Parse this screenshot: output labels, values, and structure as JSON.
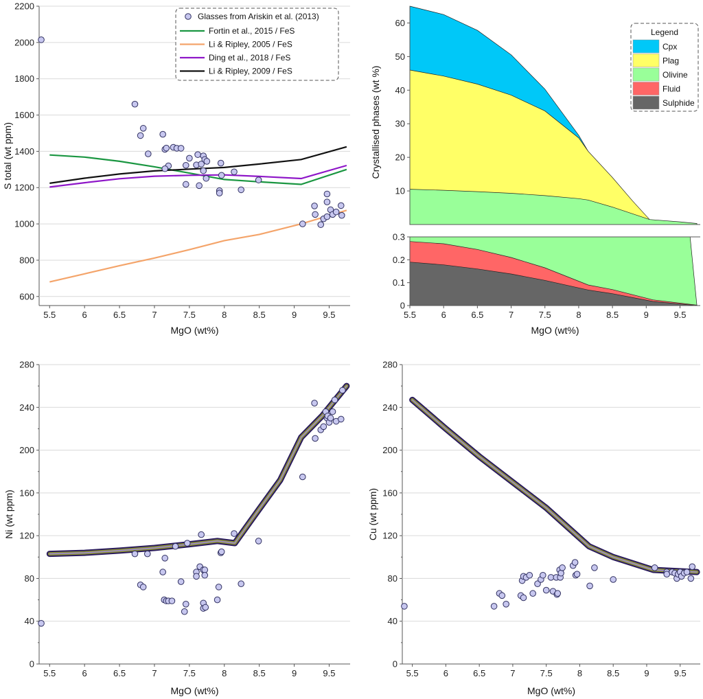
{
  "chart_data": [
    {
      "id": "sulfur",
      "type": "line",
      "xlabel": "MgO (wt%)",
      "ylabel": "S total (wt ppm)",
      "xlim": [
        5.35,
        9.8
      ],
      "ylim": [
        550,
        2200
      ],
      "xticks": [
        5.5,
        6,
        6.5,
        7,
        7.5,
        8,
        8.5,
        9,
        9.5
      ],
      "yticks": [
        600,
        800,
        1000,
        1200,
        1400,
        1600,
        1800,
        2000,
        2200
      ],
      "grid": "horizontal",
      "legend_position": "top-right",
      "series": [
        {
          "name": "Fortin et al., 2015 / FeS",
          "color": "#1a9641",
          "x": [
            5.5,
            6.0,
            6.5,
            7.0,
            7.5,
            8.0,
            8.5,
            9.1,
            9.75
          ],
          "y": [
            1380,
            1368,
            1345,
            1315,
            1280,
            1245,
            1232,
            1218,
            1300
          ]
        },
        {
          "name": "Li & Ripley, 2005 / FeS",
          "color": "#f4a46a",
          "x": [
            5.5,
            6.0,
            6.5,
            7.0,
            7.5,
            8.0,
            8.5,
            9.1,
            9.75
          ],
          "y": [
            680,
            725,
            770,
            812,
            858,
            908,
            942,
            1000,
            1075
          ]
        },
        {
          "name": "Ding et al., 2018 / FeS",
          "color": "#8e16c8",
          "x": [
            5.5,
            6.0,
            6.5,
            7.0,
            7.5,
            8.0,
            8.5,
            9.1,
            9.75
          ],
          "y": [
            1203,
            1227,
            1249,
            1263,
            1268,
            1270,
            1262,
            1250,
            1322
          ]
        },
        {
          "name": "Li & Ripley, 2009 / FeS",
          "color": "#111111",
          "x": [
            5.5,
            6.0,
            6.5,
            7.0,
            7.5,
            8.0,
            8.5,
            9.1,
            9.75
          ],
          "y": [
            1224,
            1252,
            1275,
            1292,
            1302,
            1311,
            1330,
            1355,
            1425
          ]
        }
      ],
      "points_name": "Glasses from Ariskin et al. (2013)",
      "points": [
        [
          5.38,
          2015
        ],
        [
          6.72,
          1660
        ],
        [
          6.8,
          1487
        ],
        [
          6.84,
          1527
        ],
        [
          6.91,
          1386
        ],
        [
          7.12,
          1494
        ],
        [
          7.15,
          1411
        ],
        [
          7.17,
          1418
        ],
        [
          7.2,
          1320
        ],
        [
          7.15,
          1304
        ],
        [
          7.27,
          1422
        ],
        [
          7.32,
          1417
        ],
        [
          7.38,
          1417
        ],
        [
          7.45,
          1323
        ],
        [
          7.5,
          1362
        ],
        [
          7.6,
          1325
        ],
        [
          7.62,
          1382
        ],
        [
          7.67,
          1330
        ],
        [
          7.7,
          1375
        ],
        [
          7.72,
          1355
        ],
        [
          7.75,
          1345
        ],
        [
          7.7,
          1293
        ],
        [
          7.74,
          1251
        ],
        [
          7.95,
          1335
        ],
        [
          7.96,
          1268
        ],
        [
          8.14,
          1287
        ],
        [
          7.45,
          1218
        ],
        [
          7.64,
          1211
        ],
        [
          7.93,
          1183
        ],
        [
          7.93,
          1170
        ],
        [
          8.24,
          1188
        ],
        [
          8.49,
          1242
        ],
        [
          9.12,
          1000
        ],
        [
          9.29,
          1099
        ],
        [
          9.3,
          1052
        ],
        [
          9.38,
          996
        ],
        [
          9.42,
          1028
        ],
        [
          9.47,
          1165
        ],
        [
          9.47,
          1121
        ],
        [
          9.47,
          1040
        ],
        [
          9.52,
          1078
        ],
        [
          9.55,
          1052
        ],
        [
          9.6,
          1066
        ],
        [
          9.67,
          1101
        ],
        [
          9.68,
          1047
        ]
      ]
    },
    {
      "id": "phases",
      "type": "area",
      "xlabel": "MgO (wt%)",
      "ylabel": "Crystallised phases (wt %)",
      "xlim": [
        5.5,
        9.8
      ],
      "xticks": [
        5.5,
        6,
        6.5,
        7,
        7.5,
        8,
        8.5,
        9,
        9.5
      ],
      "upper": {
        "ylim": [
          0,
          65
        ],
        "yticks": [
          10,
          20,
          30,
          40,
          50,
          60
        ]
      },
      "lower": {
        "ylim": [
          0,
          0.3
        ],
        "yticks": [
          0,
          0.1,
          0.2,
          0.3
        ]
      },
      "legend_title": "Legend",
      "legend_position": "top-right",
      "layers": [
        {
          "name": "Cpx",
          "color": "#00c8f8",
          "x": [
            5.5,
            6.0,
            6.5,
            7.0,
            7.5,
            8.0,
            8.14
          ],
          "top": [
            65,
            62.5,
            57.8,
            50.5,
            40.3,
            26.6,
            21.8
          ]
        },
        {
          "name": "Plag",
          "color": "#ffff66",
          "x": [
            5.5,
            6.0,
            6.5,
            7.0,
            7.5,
            8.0,
            8.14,
            8.5,
            8.8,
            9.05
          ],
          "top": [
            46,
            44.2,
            41.8,
            38.5,
            33.8,
            25.8,
            21.8,
            14,
            7,
            1.5
          ]
        },
        {
          "name": "Olivine",
          "color": "#99ff99",
          "x": [
            5.5,
            6.0,
            6.5,
            7.0,
            7.5,
            8.0,
            8.14,
            8.5,
            9.05,
            9.5,
            9.75
          ],
          "top": [
            10.5,
            10.2,
            9.8,
            9.3,
            8.6,
            7.7,
            7.3,
            5.2,
            1.5,
            0.8,
            0.3
          ]
        },
        {
          "name": "Fluid",
          "color": "#ff6666",
          "x": [
            5.5,
            6.0,
            6.5,
            7.0,
            7.5,
            8.14,
            8.5,
            9.1,
            9.75
          ],
          "top": [
            0.28,
            0.27,
            0.245,
            0.21,
            0.165,
            0.09,
            0.07,
            0.025,
            0.002
          ]
        },
        {
          "name": "Sulphide",
          "color": "#666666",
          "x": [
            5.5,
            6.0,
            6.5,
            7.0,
            7.5,
            8.14,
            8.5,
            9.1,
            9.75
          ],
          "top": [
            0.19,
            0.178,
            0.16,
            0.138,
            0.11,
            0.068,
            0.052,
            0.018,
            0.0
          ]
        }
      ],
      "olivine_lower_panel": {
        "x": [
          5.5,
          9.65,
          9.75
        ],
        "top": [
          0.3,
          0.3,
          0.0
        ]
      }
    },
    {
      "id": "nickel",
      "type": "line",
      "xlabel": "MgO (wt%)",
      "ylabel": "Ni (wt ppm)",
      "xlim": [
        5.35,
        9.8
      ],
      "ylim": [
        0,
        280
      ],
      "xticks": [
        5.5,
        6,
        6.5,
        7,
        7.5,
        8,
        8.5,
        9,
        9.5
      ],
      "yticks": [
        0,
        40,
        80,
        120,
        160,
        200,
        240,
        280
      ],
      "grid": "horizontal",
      "series": [
        {
          "x": [
            5.5,
            6.0,
            6.5,
            7.0,
            7.5,
            7.9,
            8.15,
            8.5,
            8.8,
            9.1,
            9.4,
            9.75
          ],
          "y": [
            103,
            104,
            106,
            108.5,
            112,
            115,
            113,
            145,
            172,
            212,
            232,
            260
          ]
        }
      ],
      "points": [
        [
          5.38,
          38
        ],
        [
          6.72,
          103
        ],
        [
          6.8,
          74
        ],
        [
          6.84,
          72
        ],
        [
          6.9,
          103
        ],
        [
          7.12,
          86
        ],
        [
          7.14,
          60
        ],
        [
          7.17,
          59
        ],
        [
          7.2,
          59
        ],
        [
          7.25,
          59
        ],
        [
          7.15,
          99
        ],
        [
          7.3,
          110
        ],
        [
          7.38,
          77
        ],
        [
          7.43,
          49
        ],
        [
          7.45,
          56
        ],
        [
          7.47,
          113
        ],
        [
          7.6,
          86
        ],
        [
          7.6,
          82
        ],
        [
          7.65,
          91
        ],
        [
          7.67,
          121
        ],
        [
          7.7,
          88
        ],
        [
          7.72,
          88
        ],
        [
          7.72,
          83
        ],
        [
          7.7,
          57
        ],
        [
          7.7,
          52
        ],
        [
          7.73,
          53
        ],
        [
          7.9,
          60
        ],
        [
          7.92,
          72
        ],
        [
          7.95,
          104
        ],
        [
          7.96,
          105
        ],
        [
          8.14,
          122
        ],
        [
          8.24,
          75
        ],
        [
          8.49,
          115
        ],
        [
          9.12,
          175
        ],
        [
          9.29,
          244
        ],
        [
          9.3,
          211
        ],
        [
          9.38,
          219
        ],
        [
          9.42,
          222
        ],
        [
          9.45,
          236
        ],
        [
          9.47,
          230
        ],
        [
          9.48,
          232
        ],
        [
          9.5,
          226
        ],
        [
          9.52,
          230
        ],
        [
          9.55,
          236
        ],
        [
          9.58,
          247
        ],
        [
          9.6,
          227
        ],
        [
          9.67,
          229
        ],
        [
          9.69,
          256
        ]
      ]
    },
    {
      "id": "copper",
      "type": "line",
      "xlabel": "MgO (wt%)",
      "ylabel": "Cu (wt ppm)",
      "xlim": [
        5.35,
        9.8
      ],
      "ylim": [
        0,
        280
      ],
      "xticks": [
        5.5,
        6,
        6.5,
        7,
        7.5,
        8,
        8.5,
        9,
        9.5
      ],
      "yticks": [
        0,
        40,
        80,
        120,
        160,
        200,
        240,
        280
      ],
      "grid": "horizontal",
      "series": [
        {
          "x": [
            5.5,
            6.0,
            6.5,
            7.0,
            7.5,
            8.14,
            8.5,
            9.1,
            9.75
          ],
          "y": [
            247,
            220,
            194,
            170,
            146,
            110,
            100,
            88,
            86
          ]
        }
      ],
      "points": [
        [
          5.38,
          54
        ],
        [
          6.72,
          54
        ],
        [
          6.8,
          66
        ],
        [
          6.84,
          64
        ],
        [
          6.9,
          56
        ],
        [
          7.12,
          64
        ],
        [
          7.14,
          78
        ],
        [
          7.16,
          62
        ],
        [
          7.16,
          82
        ],
        [
          7.2,
          81
        ],
        [
          7.25,
          83
        ],
        [
          7.3,
          66
        ],
        [
          7.37,
          75
        ],
        [
          7.42,
          79
        ],
        [
          7.45,
          83
        ],
        [
          7.5,
          69
        ],
        [
          7.57,
          81
        ],
        [
          7.6,
          68
        ],
        [
          7.65,
          81
        ],
        [
          7.66,
          65
        ],
        [
          7.67,
          66
        ],
        [
          7.7,
          88
        ],
        [
          7.71,
          81
        ],
        [
          7.72,
          85
        ],
        [
          7.74,
          90
        ],
        [
          7.9,
          92
        ],
        [
          7.93,
          95
        ],
        [
          7.94,
          83
        ],
        [
          7.96,
          84
        ],
        [
          8.15,
          73
        ],
        [
          8.22,
          90
        ],
        [
          8.5,
          79
        ],
        [
          9.12,
          90
        ],
        [
          9.3,
          86
        ],
        [
          9.3,
          84
        ],
        [
          9.38,
          86
        ],
        [
          9.42,
          85
        ],
        [
          9.45,
          80
        ],
        [
          9.47,
          84
        ],
        [
          9.5,
          86
        ],
        [
          9.52,
          82
        ],
        [
          9.56,
          85
        ],
        [
          9.6,
          86
        ],
        [
          9.66,
          80
        ],
        [
          9.68,
          91
        ]
      ]
    }
  ]
}
